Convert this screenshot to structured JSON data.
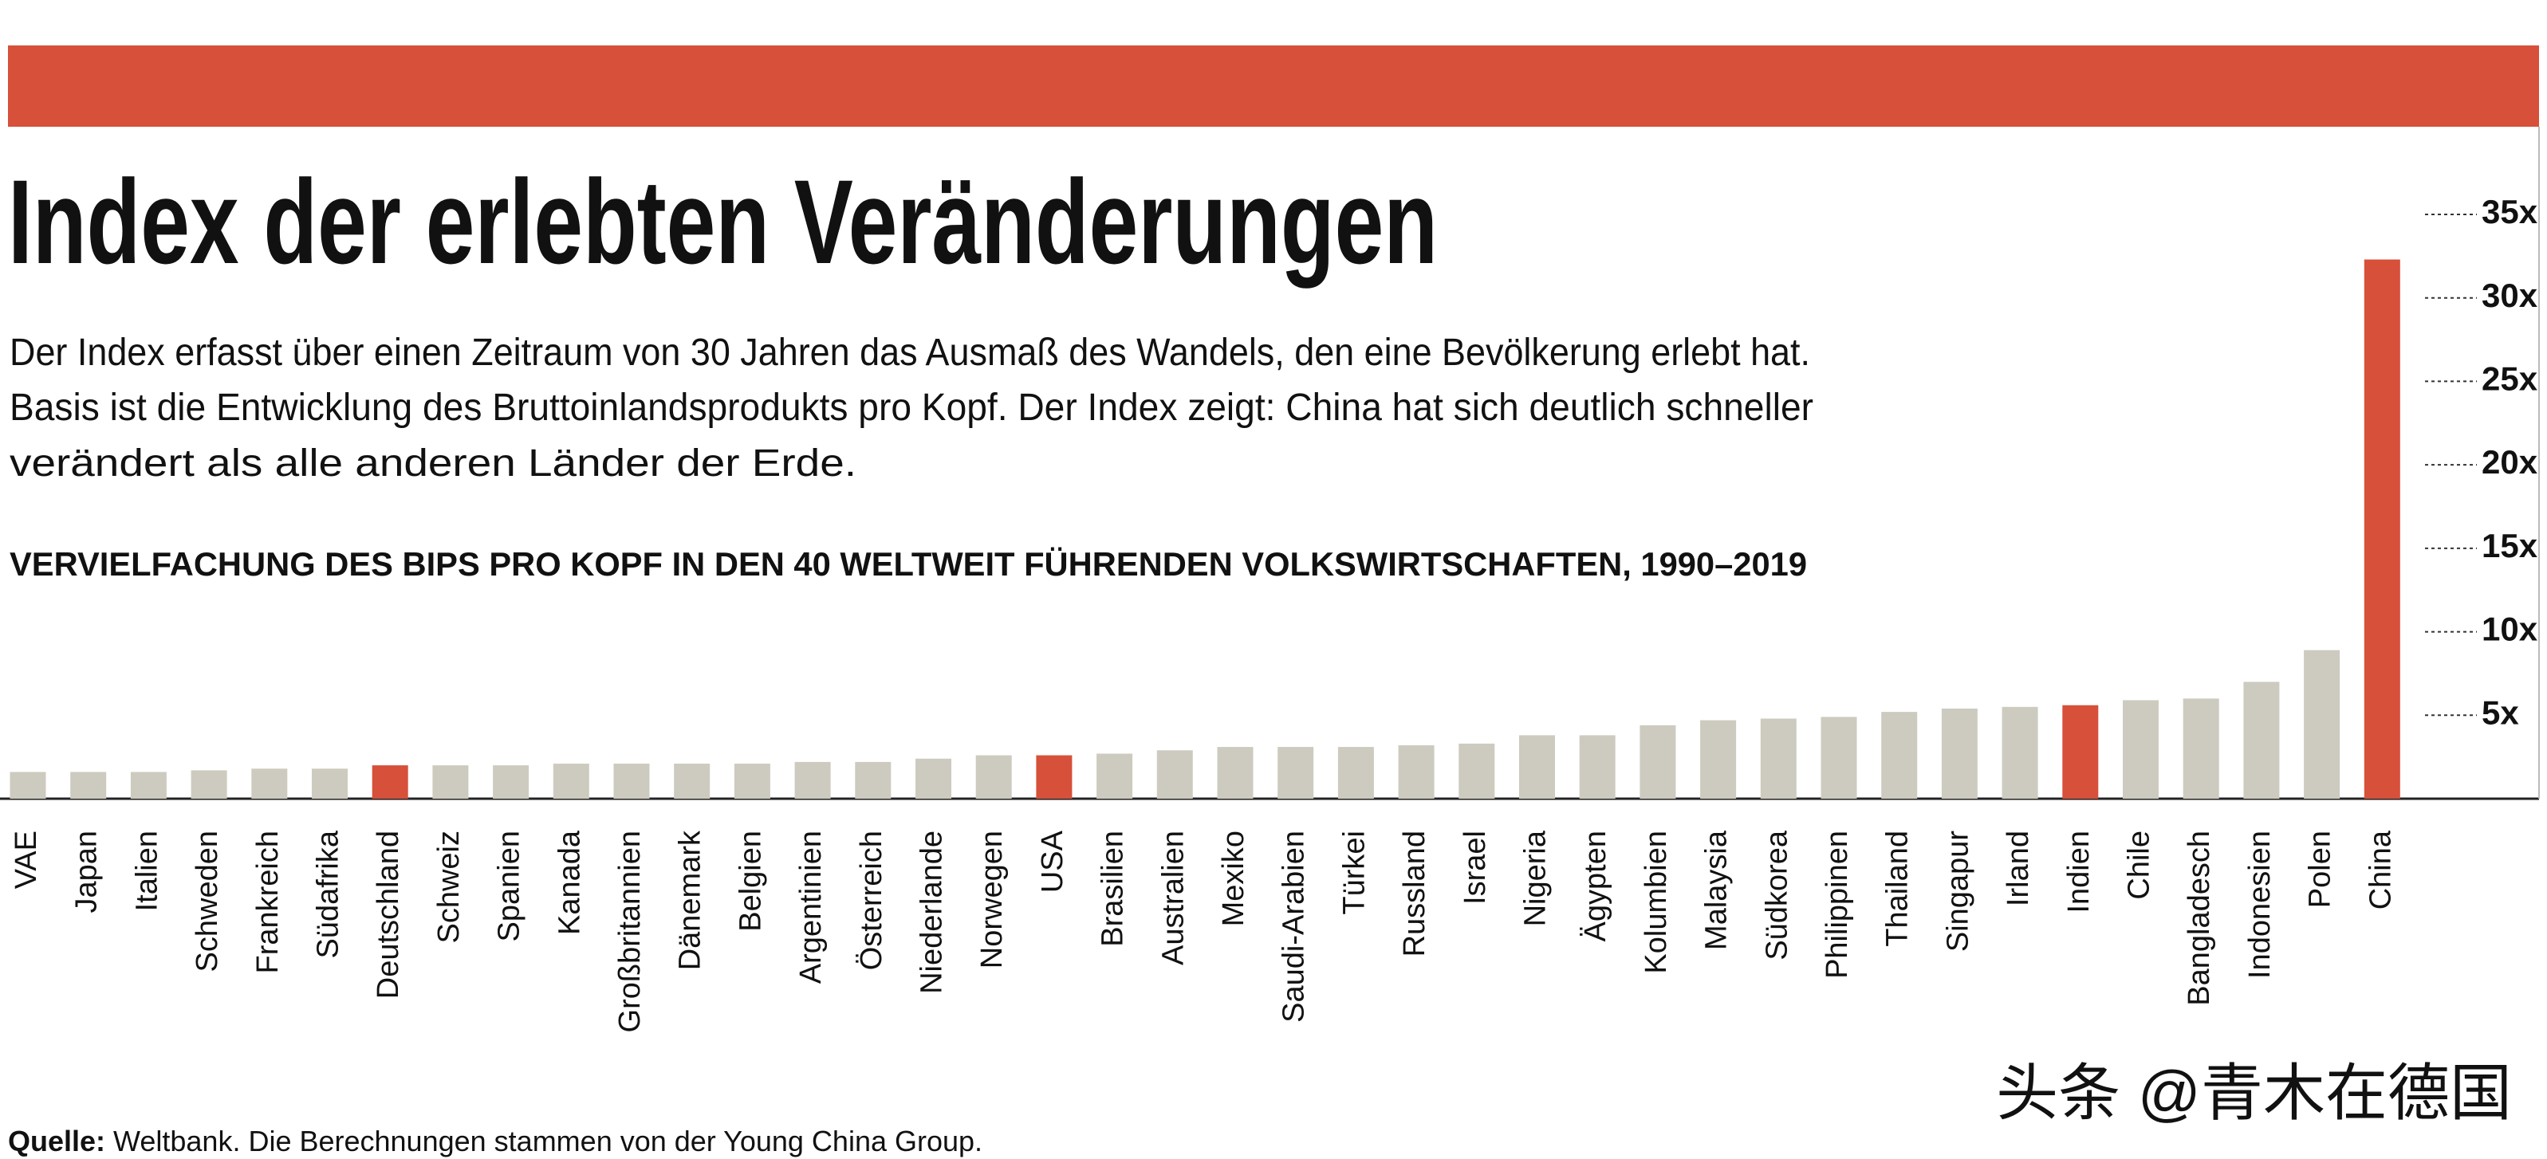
{
  "chart_data": {
    "type": "bar",
    "title": "Index der erlebten Veränderungen",
    "description": [
      "Der Index erfasst über einen Zeitraum von 30 Jahren das Ausmaß des Wandels, den eine Bevölkerung erlebt hat.",
      "Basis ist die Entwicklung des Bruttoinlandsprodukts pro Kopf. Der Index zeigt: China hat sich deutlich schneller",
      "verändert als alle anderen Länder der Erde."
    ],
    "subtitle": "VERVIELFACHUNG DES BIPS PRO KOPF IN DEN 40 WELTWEIT FÜHRENDEN VOLKSWIRTSCHAFTEN, 1990–2019",
    "categories": [
      "VAE",
      "Japan",
      "Italien",
      "Schweden",
      "Frankreich",
      "Südafrika",
      "Deutschland",
      "Schweiz",
      "Spanien",
      "Kanada",
      "Großbritannien",
      "Dänemark",
      "Belgien",
      "Argentinien",
      "Österreich",
      "Niederlande",
      "Norwegen",
      "USA",
      "Brasilien",
      "Australien",
      "Mexiko",
      "Saudi-Arabien",
      "Türkei",
      "Russland",
      "Israel",
      "Nigeria",
      "Ägypten",
      "Kolumbien",
      "Malaysia",
      "Südkorea",
      "Philippinen",
      "Thailand",
      "Singapur",
      "Irland",
      "Indien",
      "Chile",
      "Bangladesch",
      "Indonesien",
      "Polen",
      "China"
    ],
    "values": [
      1.6,
      1.6,
      1.6,
      1.7,
      1.8,
      1.8,
      2.0,
      2.0,
      2.0,
      2.1,
      2.1,
      2.1,
      2.1,
      2.2,
      2.2,
      2.4,
      2.6,
      2.6,
      2.7,
      2.9,
      3.1,
      3.1,
      3.1,
      3.2,
      3.3,
      3.8,
      3.8,
      4.4,
      4.7,
      4.8,
      4.9,
      5.2,
      5.4,
      5.5,
      5.6,
      5.9,
      6.0,
      7.0,
      8.9,
      32.3
    ],
    "colors": [
      "#cdcbbf",
      "#cdcbbf",
      "#cdcbbf",
      "#cdcbbf",
      "#cdcbbf",
      "#cdcbbf",
      "#d6503a",
      "#cdcbbf",
      "#cdcbbf",
      "#cdcbbf",
      "#cdcbbf",
      "#cdcbbf",
      "#cdcbbf",
      "#cdcbbf",
      "#cdcbbf",
      "#cdcbbf",
      "#cdcbbf",
      "#d6503a",
      "#cdcbbf",
      "#cdcbbf",
      "#cdcbbf",
      "#cdcbbf",
      "#cdcbbf",
      "#cdcbbf",
      "#cdcbbf",
      "#cdcbbf",
      "#cdcbbf",
      "#cdcbbf",
      "#cdcbbf",
      "#cdcbbf",
      "#cdcbbf",
      "#cdcbbf",
      "#cdcbbf",
      "#cdcbbf",
      "#d6503a",
      "#cdcbbf",
      "#cdcbbf",
      "#cdcbbf",
      "#cdcbbf",
      "#d6503a"
    ],
    "ylim": [
      0,
      35
    ],
    "yticks": [
      {
        "value": 5,
        "label": "5x"
      },
      {
        "value": 10,
        "label": "10x"
      },
      {
        "value": 15,
        "label": "15x"
      },
      {
        "value": 20,
        "label": "20x"
      },
      {
        "value": 25,
        "label": "25x"
      },
      {
        "value": 30,
        "label": "30x"
      },
      {
        "value": 35,
        "label": "35x"
      }
    ],
    "source_label": "Quelle:",
    "source": " Weltbank. Die Berechnungen stammen von der Young China Group.",
    "watermark": "头条 @青木在德国"
  }
}
